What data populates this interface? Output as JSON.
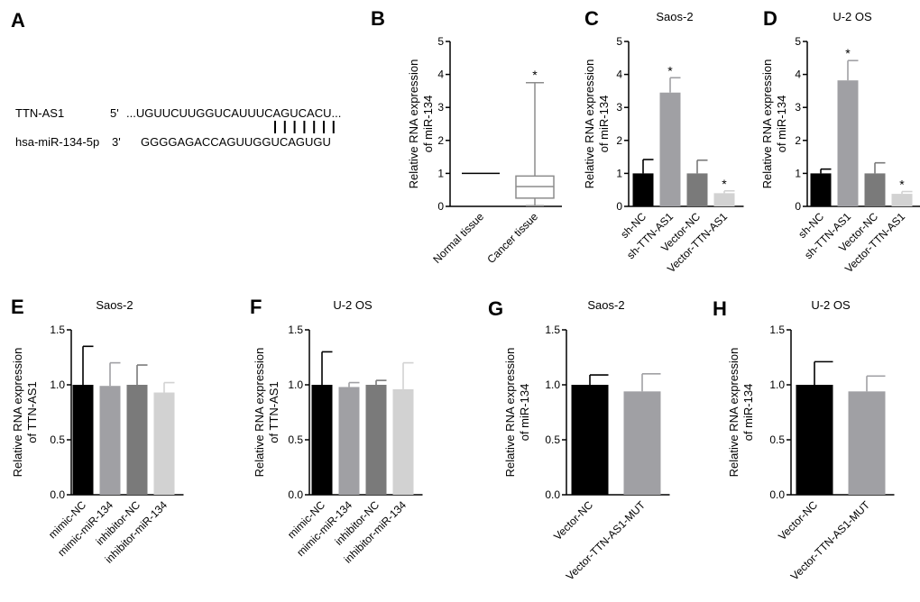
{
  "panel_letters": [
    "A",
    "B",
    "C",
    "D",
    "E",
    "F",
    "G",
    "H"
  ],
  "sequence": {
    "rna1_name": "TTN-AS1",
    "rna1_end": "5'",
    "rna1_seq": "...UGUUCUUGGUCAUUUCAGUCACU...",
    "rna2_name": "hsa-miR-134-5p",
    "rna2_end": "3'",
    "rna2_seq": "GGGGAGACCAGUUGGUCAGUGU",
    "pairing_lines": 7
  },
  "colors": {
    "black": "#000000",
    "gray_mid": "#a0a0a4",
    "gray_dark": "#7a7a7a",
    "gray_light": "#d2d2d2",
    "box_line": "#8c8c8c"
  },
  "chart_data": [
    {
      "id": "B",
      "type": "box",
      "title": "",
      "ylabel_line1": "Relative RNA expression",
      "ylabel_line2": "of miR-134",
      "ylim": [
        0,
        5
      ],
      "yticks": [
        "0",
        "1",
        "2",
        "3",
        "4",
        "5"
      ],
      "categories": [
        "Normal tissue",
        "Cancer tissue"
      ],
      "boxes": [
        {
          "min": 1.0,
          "q1": 1.0,
          "median": 1.0,
          "q3": 1.0,
          "max": 1.0,
          "sig": ""
        },
        {
          "min": 0.02,
          "q1": 0.25,
          "median": 0.6,
          "q3": 0.92,
          "max": 3.75,
          "sig": "*"
        }
      ]
    },
    {
      "id": "C",
      "type": "bar",
      "title": "Saos-2",
      "ylabel_line1": "Relative RNA expression",
      "ylabel_line2": "of miR-134",
      "ylim": [
        0,
        5
      ],
      "yticks": [
        "0",
        "1",
        "2",
        "3",
        "4",
        "5"
      ],
      "categories": [
        "sh-NC",
        "sh-TTN-AS1",
        "Vector-NC",
        "Vector-TTN-AS1"
      ],
      "values": [
        1.0,
        3.45,
        1.0,
        0.4
      ],
      "errors": [
        0.42,
        0.45,
        0.4,
        0.07
      ],
      "sig": [
        "",
        "*",
        "",
        "*"
      ]
    },
    {
      "id": "D",
      "type": "bar",
      "title": "U-2 OS",
      "ylabel_line1": "Relative RNA expression",
      "ylabel_line2": "of miR-134",
      "ylim": [
        0,
        5
      ],
      "yticks": [
        "0",
        "1",
        "2",
        "3",
        "4",
        "5"
      ],
      "categories": [
        "sh-NC",
        "sh-TTN-AS1",
        "Vector-NC",
        "Vector-TTN-AS1"
      ],
      "values": [
        1.0,
        3.82,
        1.0,
        0.38
      ],
      "errors": [
        0.13,
        0.6,
        0.32,
        0.07
      ],
      "sig": [
        "",
        "*",
        "",
        "*"
      ]
    },
    {
      "id": "E",
      "type": "bar",
      "title": "Saos-2",
      "ylabel_line1": "Relative RNA expression",
      "ylabel_line2": "of TTN-AS1",
      "ylim": [
        0,
        1.5
      ],
      "yticks": [
        "0.0",
        "0.5",
        "1.0",
        "1.5"
      ],
      "categories": [
        "mimic-NC",
        "mimic-miR-134",
        "inhibitor-NC",
        "inhibitor-miR-134"
      ],
      "values": [
        1.0,
        0.99,
        1.0,
        0.93
      ],
      "errors": [
        0.35,
        0.21,
        0.18,
        0.09
      ],
      "sig": [
        "",
        "",
        "",
        ""
      ]
    },
    {
      "id": "F",
      "type": "bar",
      "title": "U-2 OS",
      "ylabel_line1": "Relative RNA expression",
      "ylabel_line2": "of TTN-AS1",
      "ylim": [
        0,
        1.5
      ],
      "yticks": [
        "0.0",
        "0.5",
        "1.0",
        "1.5"
      ],
      "categories": [
        "mimic-NC",
        "mimic-miR-134",
        "inhibitor-NC",
        "inhibitor-miR-134"
      ],
      "values": [
        1.0,
        0.98,
        1.0,
        0.96
      ],
      "errors": [
        0.3,
        0.04,
        0.04,
        0.24
      ],
      "sig": [
        "",
        "",
        "",
        ""
      ]
    },
    {
      "id": "G",
      "type": "bar",
      "title": "Saos-2",
      "ylabel_line1": "Relative RNA expression",
      "ylabel_line2": "of miR-134",
      "ylim": [
        0,
        1.5
      ],
      "yticks": [
        "0.0",
        "0.5",
        "1.0",
        "1.5"
      ],
      "categories": [
        "Vector-NC",
        "Vector-TTN-AS1-MUT"
      ],
      "values": [
        1.0,
        0.94
      ],
      "errors": [
        0.09,
        0.16
      ],
      "sig": [
        "",
        ""
      ]
    },
    {
      "id": "H",
      "type": "bar",
      "title": "U-2 OS",
      "ylabel_line1": "Relative RNA expression",
      "ylabel_line2": "of miR-134",
      "ylim": [
        0,
        1.5
      ],
      "yticks": [
        "0.0",
        "0.5",
        "1.0",
        "1.5"
      ],
      "categories": [
        "Vector-NC",
        "Vector-TTN-AS1-MUT"
      ],
      "values": [
        1.0,
        0.94
      ],
      "errors": [
        0.21,
        0.14
      ],
      "sig": [
        "",
        ""
      ]
    }
  ]
}
